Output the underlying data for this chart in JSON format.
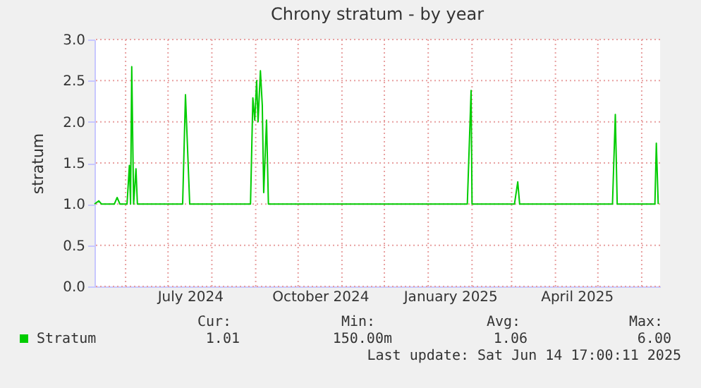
{
  "chart_data": {
    "type": "line",
    "title": "Chrony stratum - by year",
    "ylabel": "stratum",
    "xlim": [
      "2024-05-10",
      "2025-06-14"
    ],
    "xticks": [
      {
        "value": "2024-07-16T12:00",
        "label": "July 2024"
      },
      {
        "value": "2024-10-16T12:00",
        "label": "October 2024"
      },
      {
        "value": "2025-01-16T12:00",
        "label": "January 2025"
      },
      {
        "value": "2025-04-16T00:00",
        "label": "April 2025"
      }
    ],
    "ylim": [
      0,
      3
    ],
    "yticks": [
      {
        "value": 0,
        "label": "0.0"
      },
      {
        "value": 0.5,
        "label": "0.5"
      },
      {
        "value": 1,
        "label": "1.0"
      },
      {
        "value": 1.5,
        "label": "1.5"
      },
      {
        "value": 2,
        "label": "2.0"
      },
      {
        "value": 2.5,
        "label": "2.5"
      },
      {
        "value": 3,
        "label": "3.0"
      }
    ],
    "grid": true,
    "legend": "bottom",
    "series": [
      {
        "name": "Stratum",
        "color": "#00cc00",
        "x": [
          "2024-05-10",
          "2024-05-13",
          "2024-05-15",
          "2024-05-24",
          "2024-05-26",
          "2024-05-28",
          "2024-06-02",
          "2024-06-03T16:00",
          "2024-06-04T12:00",
          "2024-06-05T08:00",
          "2024-06-06T16:00",
          "2024-06-08T08:00",
          "2024-06-09T08:00",
          "2024-07-11T08:00",
          "2024-07-13T08:00",
          "2024-07-16T08:00",
          "2024-08-28T08:00",
          "2024-08-30",
          "2024-08-31T08:00",
          "2024-09-01T16:00",
          "2024-09-02T16:00",
          "2024-09-04T08:00",
          "2024-09-05T16:00",
          "2024-09-06T16:00",
          "2024-09-08T16:00",
          "2024-09-10",
          "2025-01-28T16:00",
          "2025-01-31T08:00",
          "2025-02-01",
          "2025-03-03",
          "2025-03-05T08:00",
          "2025-03-06T16:00",
          "2025-05-11T08:00",
          "2025-05-13T08:00",
          "2025-05-14T16:00",
          "2025-06-10T08:00",
          "2025-06-11T08:00",
          "2025-06-12T16:00"
        ],
        "values": [
          1.0,
          1.04,
          1.0,
          1.0,
          1.08,
          1.0,
          1.0,
          1.47,
          1.0,
          2.67,
          1.0,
          1.43,
          1.0,
          1.0,
          2.33,
          1.0,
          1.0,
          2.29,
          2.02,
          2.5,
          2.0,
          2.62,
          2.2,
          1.14,
          2.02,
          1.0,
          1.0,
          2.38,
          1.0,
          1.0,
          1.27,
          1.0,
          1.0,
          2.09,
          1.0,
          1.0,
          1.74,
          1.0
        ]
      }
    ],
    "annotations": [
      "Cur:",
      "Min:",
      "Avg:",
      "Max:",
      "1.01",
      "150.00m",
      "1.06",
      "6.00",
      "Last update: Sat Jun 14 17:00:11 2025"
    ]
  }
}
